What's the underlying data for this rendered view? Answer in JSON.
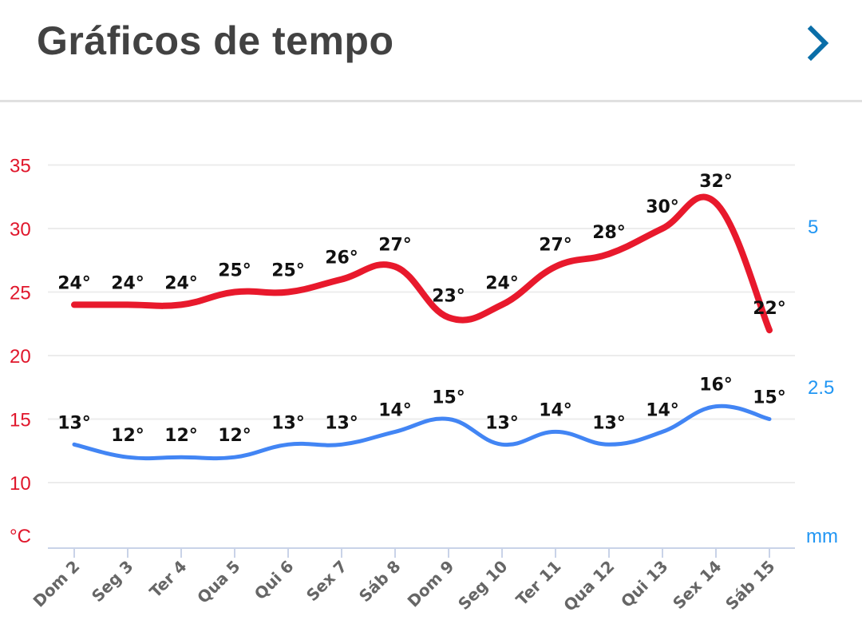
{
  "header": {
    "title": "Gráficos de tempo"
  },
  "chart_data": {
    "type": "line",
    "categories": [
      "Dom 2",
      "Seg 3",
      "Ter 4",
      "Qua 5",
      "Qui 6",
      "Sex 7",
      "Sáb 8",
      "Dom 9",
      "Seg 10",
      "Ter 11",
      "Qua 12",
      "Qui 13",
      "Sex 14",
      "Sáb 15"
    ],
    "series": [
      {
        "values": [
          24,
          24,
          24,
          25,
          25,
          26,
          27,
          23,
          24,
          27,
          28,
          30,
          32,
          22
        ],
        "labels": [
          "24°",
          "24°",
          "24°",
          "25°",
          "25°",
          "26°",
          "27°",
          "23°",
          "24°",
          "27°",
          "28°",
          "30°",
          "32°",
          "22°"
        ],
        "color": "#e8192c"
      },
      {
        "values": [
          13,
          12,
          12,
          12,
          13,
          13,
          14,
          15,
          13,
          14,
          13,
          14,
          16,
          15
        ],
        "labels": [
          "13°",
          "12°",
          "12°",
          "12°",
          "13°",
          "13°",
          "14°",
          "15°",
          "13°",
          "14°",
          "13°",
          "14°",
          "16°",
          "15°"
        ],
        "color": "#4285f4"
      }
    ],
    "left_axis": {
      "unit": "°C",
      "ticks": [
        10,
        15,
        20,
        25,
        30,
        35
      ],
      "color": "#e0162b"
    },
    "right_axis": {
      "unit": "mm",
      "ticks": [
        "2.5",
        "5"
      ],
      "color": "#2196f3"
    },
    "grid": true
  }
}
